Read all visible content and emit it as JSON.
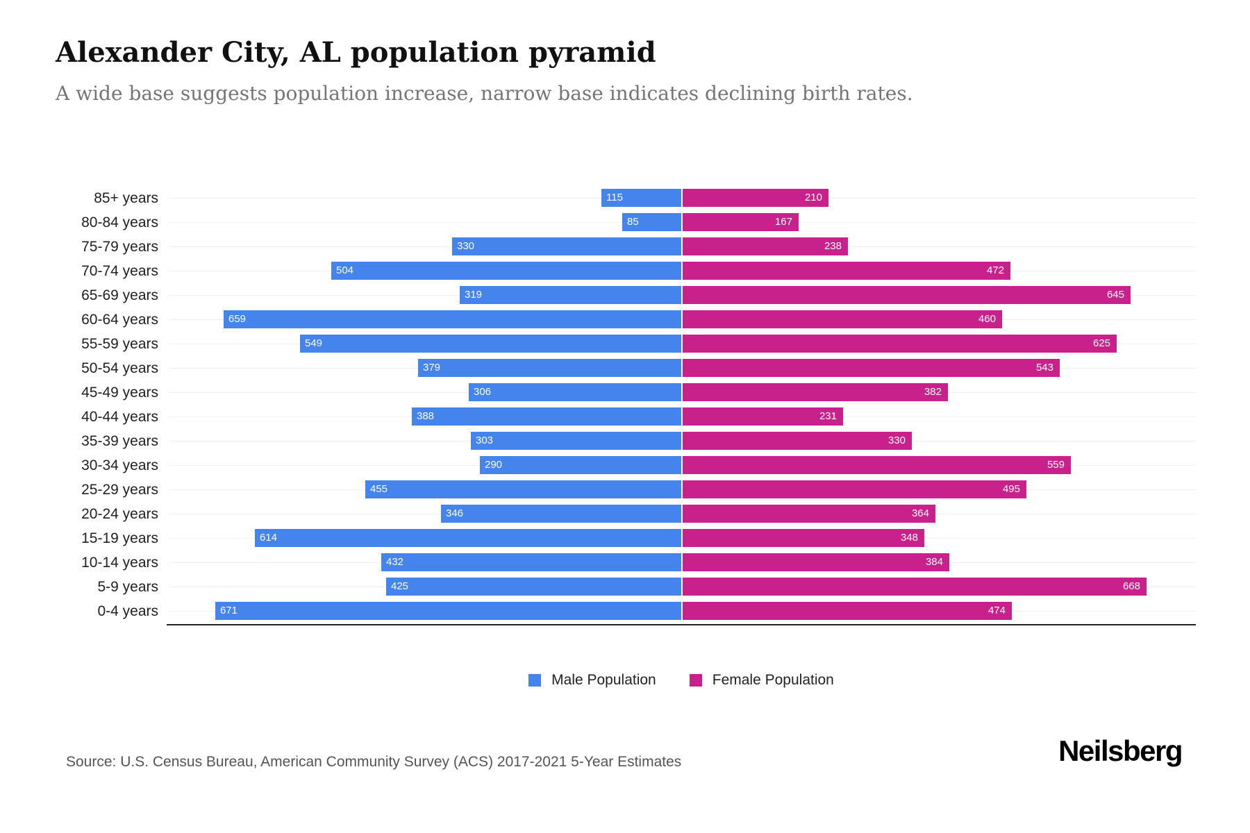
{
  "header": {
    "title": "Alexander City, AL population pyramid",
    "subtitle": "A wide base suggests population increase, narrow base indicates declining birth rates."
  },
  "legend": {
    "male": "Male Population",
    "female": "Female Population"
  },
  "footer": {
    "source": "Source: U.S. Census Bureau, American Community Survey (ACS) 2017-2021 5-Year Estimates",
    "brand": "Neilsberg"
  },
  "colors": {
    "male": "#4584EC",
    "female": "#C9218C",
    "gridline": "#EFEFEF",
    "axis": "#212121",
    "value_label": "#FFFFFF"
  },
  "chart_data": {
    "type": "bar",
    "variant": "population-pyramid",
    "orientation": "horizontal",
    "categories": [
      "85+ years",
      "80-84 years",
      "75-79 years",
      "70-74 years",
      "65-69 years",
      "60-64 years",
      "55-59 years",
      "50-54 years",
      "45-49 years",
      "40-44 years",
      "35-39 years",
      "30-34 years",
      "25-29 years",
      "20-24 years",
      "15-19 years",
      "10-14 years",
      "5-9 years",
      "0-4 years"
    ],
    "series": [
      {
        "name": "Male Population",
        "side": "left",
        "values": [
          115,
          85,
          330,
          504,
          319,
          659,
          549,
          379,
          306,
          388,
          303,
          290,
          455,
          346,
          614,
          432,
          425,
          671
        ]
      },
      {
        "name": "Female Population",
        "side": "right",
        "values": [
          210,
          167,
          238,
          472,
          645,
          460,
          625,
          543,
          382,
          231,
          330,
          559,
          495,
          364,
          348,
          384,
          668,
          474
        ]
      }
    ],
    "value_axis_range_each_side": [
      0,
      740
    ],
    "grid": true,
    "legend_position": "bottom",
    "value_labels": "inside-bar-outer-end"
  }
}
